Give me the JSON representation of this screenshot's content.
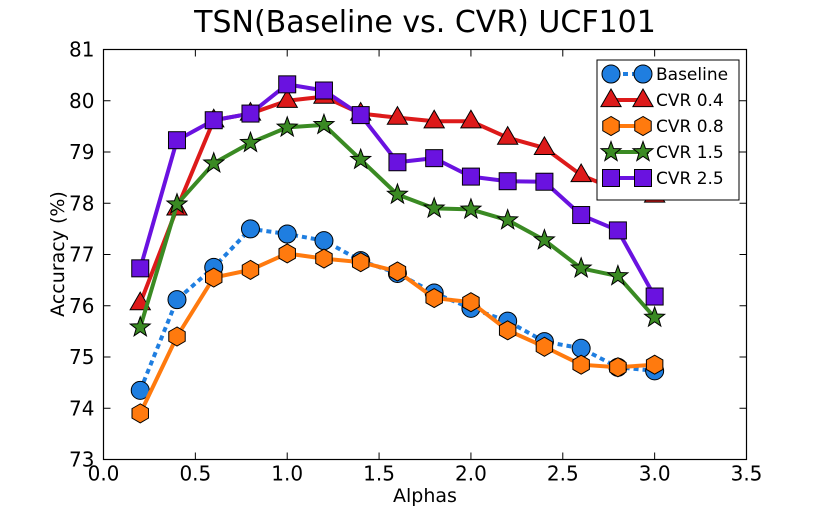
{
  "chart_data": {
    "type": "line",
    "title": "TSN(Baseline vs. CVR) UCF101",
    "xlabel": "Alphas",
    "ylabel": "Accuracy (%)",
    "xlim": [
      0.0,
      3.5
    ],
    "ylim": [
      73,
      81
    ],
    "xticks": [
      "0.0",
      "0.5",
      "1.0",
      "1.5",
      "2.0",
      "2.5",
      "3.0",
      "3.5"
    ],
    "yticks": [
      "73",
      "74",
      "75",
      "76",
      "77",
      "78",
      "79",
      "80",
      "81"
    ],
    "x": [
      0.2,
      0.4,
      0.6,
      0.8,
      1.0,
      1.2,
      1.4,
      1.6,
      1.8,
      2.0,
      2.2,
      2.4,
      2.6,
      2.8,
      3.0
    ],
    "legend_position": "top-right",
    "series": [
      {
        "name": "Baseline",
        "color": "#1f7ee0",
        "marker": "circle",
        "linestyle": "dashed",
        "values": [
          74.35,
          76.12,
          76.75,
          77.5,
          77.4,
          77.27,
          76.88,
          76.63,
          76.25,
          75.95,
          75.7,
          75.3,
          75.17,
          74.8,
          74.73
        ]
      },
      {
        "name": "CVR 0.4",
        "color": "#dd1a1a",
        "marker": "triangle",
        "linestyle": "solid",
        "values": [
          76.05,
          77.9,
          79.62,
          79.75,
          80.0,
          80.08,
          79.75,
          79.67,
          79.6,
          79.6,
          79.28,
          79.08,
          78.55,
          78.25,
          78.15
        ]
      },
      {
        "name": "CVR 0.8",
        "color": "#ff7a0e",
        "marker": "hexagon",
        "linestyle": "solid",
        "values": [
          73.9,
          75.4,
          76.55,
          76.7,
          77.02,
          76.92,
          76.85,
          76.67,
          76.15,
          76.07,
          75.52,
          75.2,
          74.85,
          74.8,
          74.85
        ]
      },
      {
        "name": "CVR 1.5",
        "color": "#3a8a23",
        "marker": "star",
        "linestyle": "solid",
        "values": [
          75.58,
          77.98,
          78.78,
          79.18,
          79.48,
          79.53,
          78.85,
          78.17,
          77.9,
          77.88,
          77.67,
          77.28,
          76.73,
          76.58,
          75.77
        ]
      },
      {
        "name": "CVR 2.5",
        "color": "#6a12e0",
        "marker": "square",
        "linestyle": "solid",
        "values": [
          76.73,
          79.23,
          79.62,
          79.75,
          80.32,
          80.2,
          79.72,
          78.8,
          78.88,
          78.52,
          78.43,
          78.42,
          77.77,
          77.47,
          76.18
        ]
      }
    ]
  }
}
